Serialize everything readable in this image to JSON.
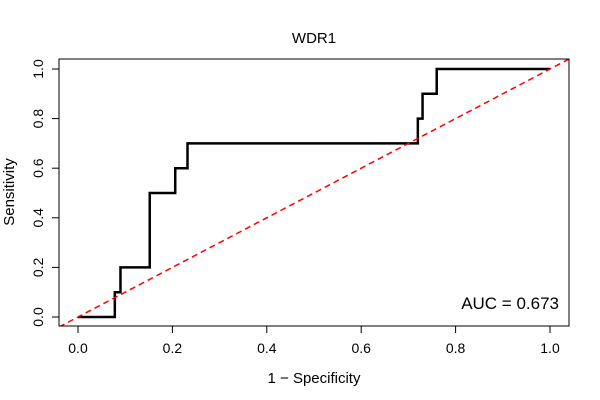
{
  "chart_data": {
    "type": "line",
    "title": "WDR1",
    "xlabel": "1 − Specificity",
    "ylabel": "Sensitivity",
    "xlim": [
      0,
      1
    ],
    "ylim": [
      0,
      1
    ],
    "xticks": [
      0.0,
      0.2,
      0.4,
      0.6,
      0.8,
      1.0
    ],
    "yticks": [
      0.0,
      0.2,
      0.4,
      0.6,
      0.8,
      1.0
    ],
    "xtick_labels": [
      "0.0",
      "0.2",
      "0.4",
      "0.6",
      "0.8",
      "1.0"
    ],
    "ytick_labels": [
      "0.0",
      "0.2",
      "0.4",
      "0.6",
      "0.8",
      "1.0"
    ],
    "series": [
      {
        "name": "ROC curve",
        "color": "#000000",
        "style": "solid",
        "x": [
          0.0,
          0.078,
          0.078,
          0.09,
          0.09,
          0.152,
          0.152,
          0.206,
          0.206,
          0.232,
          0.232,
          0.72,
          0.72,
          0.73,
          0.73,
          0.76,
          0.76,
          1.0
        ],
        "y": [
          0.0,
          0.0,
          0.1,
          0.1,
          0.2,
          0.2,
          0.5,
          0.5,
          0.6,
          0.6,
          0.7,
          0.7,
          0.8,
          0.8,
          0.9,
          0.9,
          1.0,
          1.0
        ]
      },
      {
        "name": "Reference",
        "color": "#ff0000",
        "style": "dashed",
        "x": [
          -0.04,
          1.04
        ],
        "y": [
          -0.04,
          1.04
        ]
      }
    ],
    "annotation": "AUC = 0.673",
    "annotation_position": "bottom-right"
  }
}
